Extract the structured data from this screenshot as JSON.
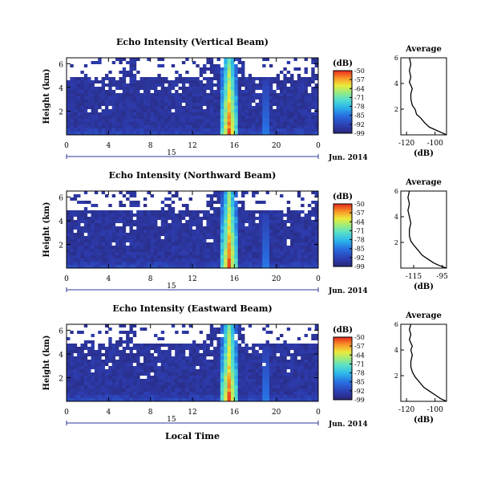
{
  "chart_data": [
    {
      "type": "heatmap",
      "title": "Echo Intensity (Vertical Beam)",
      "ylabel": "Height (km)",
      "x_ticks": [
        "0",
        "4",
        "8",
        "12",
        "16",
        "20",
        "0"
      ],
      "y_ticks": [
        "6",
        "4",
        "2"
      ],
      "date_label": "15",
      "date_suffix": "Jun. 2014",
      "colorbar": {
        "unit": "(dB)",
        "ticks": [
          "-50",
          "-57",
          "-64",
          "-71",
          "-78",
          "-85",
          "-92",
          "-99"
        ]
      },
      "profile": {
        "title": "Average",
        "xlabel": "(dB)",
        "x_ticks": [
          "-120",
          "-100"
        ],
        "y_ticks": [
          "6",
          "4",
          "2"
        ],
        "xlim": [
          -124,
          -92
        ],
        "ylim": [
          0,
          6
        ],
        "points": [
          [
            -92,
            0.0
          ],
          [
            -96,
            0.2
          ],
          [
            -100,
            0.4
          ],
          [
            -104,
            0.6
          ],
          [
            -107,
            0.9
          ],
          [
            -110,
            1.3
          ],
          [
            -113,
            1.6
          ],
          [
            -114,
            2.0
          ],
          [
            -116,
            2.3
          ],
          [
            -117,
            2.8
          ],
          [
            -117,
            3.2
          ],
          [
            -116,
            3.6
          ],
          [
            -118,
            4.1
          ],
          [
            -117,
            4.5
          ],
          [
            -118,
            5.0
          ],
          [
            -117,
            5.5
          ],
          [
            -118,
            6.0
          ]
        ]
      }
    },
    {
      "type": "heatmap",
      "title": "Echo Intensity (Northward Beam)",
      "ylabel": "Height (km)",
      "x_ticks": [
        "0",
        "4",
        "8",
        "12",
        "16",
        "20",
        "0"
      ],
      "y_ticks": [
        "6",
        "4",
        "2"
      ],
      "date_label": "15",
      "date_suffix": "Jun. 2014",
      "colorbar": {
        "unit": "(dB)",
        "ticks": [
          "-50",
          "-57",
          "-64",
          "-71",
          "-78",
          "-85",
          "-92",
          "-99"
        ]
      },
      "profile": {
        "title": "Average",
        "xlabel": "(dB)",
        "x_ticks": [
          "-115",
          "-95"
        ],
        "y_ticks": [
          "6",
          "4",
          "2"
        ],
        "xlim": [
          -124,
          -92
        ],
        "ylim": [
          0,
          6
        ],
        "points": [
          [
            -92,
            0.0
          ],
          [
            -97,
            0.2
          ],
          [
            -101,
            0.4
          ],
          [
            -105,
            0.7
          ],
          [
            -109,
            1.0
          ],
          [
            -112,
            1.4
          ],
          [
            -115,
            1.8
          ],
          [
            -117,
            2.1
          ],
          [
            -118,
            2.5
          ],
          [
            -118,
            3.0
          ],
          [
            -117,
            3.5
          ],
          [
            -118,
            4.0
          ],
          [
            -119,
            4.5
          ],
          [
            -118,
            5.0
          ],
          [
            -119,
            5.5
          ],
          [
            -118,
            6.0
          ]
        ]
      }
    },
    {
      "type": "heatmap",
      "title": "Echo Intensity (Eastward Beam)",
      "ylabel": "Height (km)",
      "xlabel": "Local Time",
      "x_ticks": [
        "0",
        "4",
        "8",
        "12",
        "16",
        "20",
        "0"
      ],
      "y_ticks": [
        "6",
        "4",
        "2"
      ],
      "date_label": "15",
      "date_suffix": "Jun. 2014",
      "colorbar": {
        "unit": "(dB)",
        "ticks": [
          "-50",
          "-57",
          "-64",
          "-71",
          "-78",
          "-85",
          "-92",
          "-99"
        ]
      },
      "profile": {
        "title": "Average",
        "xlabel": "(dB)",
        "x_ticks": [
          "-120",
          "-100"
        ],
        "y_ticks": [
          "6",
          "4",
          "2"
        ],
        "xlim": [
          -124,
          -92
        ],
        "ylim": [
          0,
          6
        ],
        "points": [
          [
            -92,
            0.0
          ],
          [
            -96,
            0.2
          ],
          [
            -100,
            0.5
          ],
          [
            -104,
            0.8
          ],
          [
            -108,
            1.1
          ],
          [
            -111,
            1.5
          ],
          [
            -114,
            1.9
          ],
          [
            -116,
            2.3
          ],
          [
            -117,
            2.7
          ],
          [
            -117,
            3.1
          ],
          [
            -116,
            3.6
          ],
          [
            -117,
            4.0
          ],
          [
            -116,
            4.3
          ],
          [
            -118,
            4.8
          ],
          [
            -117,
            5.2
          ],
          [
            -118,
            5.6
          ],
          [
            -117,
            6.0
          ]
        ]
      }
    }
  ]
}
